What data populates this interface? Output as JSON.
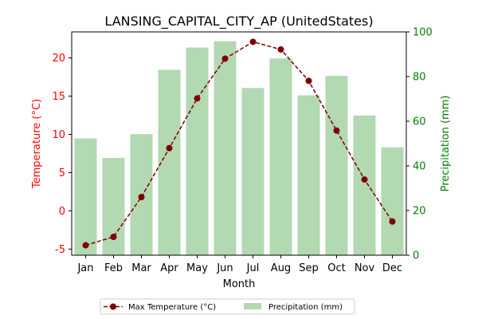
{
  "chart_data": {
    "type": "bar+line",
    "title": "LANSING_CAPITAL_CITY_AP (UnitedStates)",
    "xlabel": "Month",
    "ylabel_left": "Temperature (°C)",
    "ylabel_right": "Precipitation (mm)",
    "categories": [
      "Jan",
      "Feb",
      "Mar",
      "Apr",
      "May",
      "Jun",
      "Jul",
      "Aug",
      "Sep",
      "Oct",
      "Nov",
      "Dec"
    ],
    "series": [
      {
        "name": "Max Temperature (°C)",
        "type": "line",
        "axis": "left",
        "values": [
          -4.5,
          -3.4,
          1.8,
          8.2,
          14.7,
          19.9,
          22.1,
          21.1,
          17.0,
          10.5,
          4.1,
          -1.4
        ],
        "color": "#800000"
      },
      {
        "name": "Precipitation (mm)",
        "type": "bar",
        "axis": "right",
        "values": [
          52.3,
          43.6,
          54.2,
          83.0,
          93.0,
          95.8,
          74.9,
          88.1,
          71.6,
          80.3,
          62.6,
          48.3
        ],
        "color": "#b2d9b2"
      }
    ],
    "ylim_left": [
      -5.8,
      23.4
    ],
    "yticks_left": [
      -5,
      0,
      5,
      10,
      15,
      20
    ],
    "ylim_right": [
      0,
      100
    ],
    "yticks_right": [
      0,
      20,
      40,
      60,
      80,
      100
    ],
    "left_axis_color": "#ff0000",
    "right_axis_color": "#008000",
    "grid": false,
    "legend_position": "bottom-center"
  }
}
